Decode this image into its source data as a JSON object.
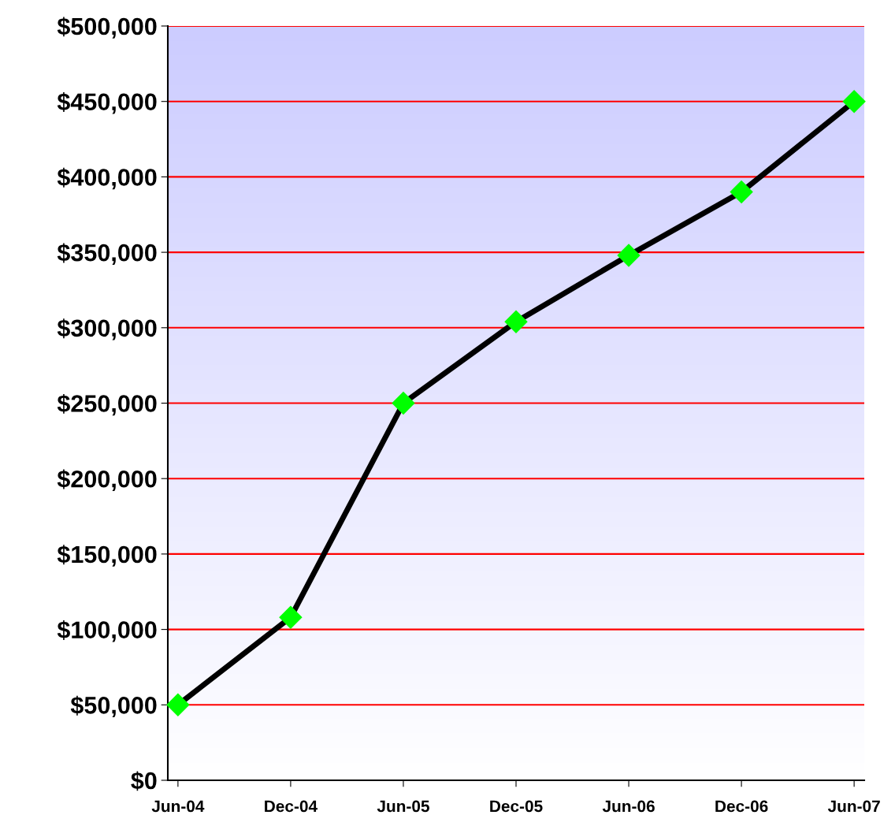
{
  "chart_data": {
    "type": "line",
    "categories": [
      "Jun-04",
      "Dec-04",
      "Jun-05",
      "Dec-05",
      "Jun-06",
      "Dec-06",
      "Jun-07"
    ],
    "series": [
      {
        "color": "#000000",
        "values": [
          50000,
          108000,
          250000,
          304000,
          348000,
          390000,
          450000
        ]
      }
    ],
    "ylim": [
      0,
      500000
    ],
    "yticks": [
      {
        "value": 0,
        "label": "$0"
      },
      {
        "value": 50000,
        "label": "$50,000"
      },
      {
        "value": 100000,
        "label": "$100,000"
      },
      {
        "value": 150000,
        "label": "$150,000"
      },
      {
        "value": 200000,
        "label": "$200,000"
      },
      {
        "value": 250000,
        "label": "$250,000"
      },
      {
        "value": 300000,
        "label": "$300,000"
      },
      {
        "value": 350000,
        "label": "$350,000"
      },
      {
        "value": 400000,
        "label": "$400,000"
      },
      {
        "value": 450000,
        "label": "$450,000"
      },
      {
        "value": 500000,
        "label": "$500,000"
      }
    ],
    "grid": "y",
    "marker": "diamond",
    "line_style": "solid",
    "legend": false
  }
}
